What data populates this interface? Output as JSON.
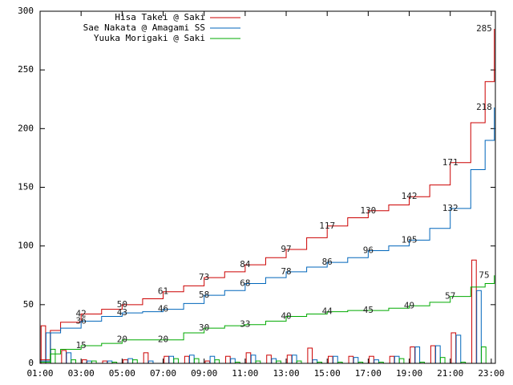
{
  "chart_data": {
    "type": "line",
    "x": [
      1,
      1.5,
      2,
      3,
      4,
      5,
      6,
      7,
      8,
      9,
      10,
      11,
      12,
      13,
      14,
      15,
      16,
      17,
      18,
      19,
      20,
      21,
      22,
      22.7,
      23.15
    ],
    "xlim": [
      1,
      23.2
    ],
    "xticks": [
      {
        "value": 1,
        "label": "01:00"
      },
      {
        "value": 3,
        "label": "03:00"
      },
      {
        "value": 5,
        "label": "05:00"
      },
      {
        "value": 7,
        "label": "07:00"
      },
      {
        "value": 9,
        "label": "09:00"
      },
      {
        "value": 11,
        "label": "11:00"
      },
      {
        "value": 13,
        "label": "13:00"
      },
      {
        "value": 15,
        "label": "15:00"
      },
      {
        "value": 17,
        "label": "17:00"
      },
      {
        "value": 19,
        "label": "19:00"
      },
      {
        "value": 21,
        "label": "21:00"
      },
      {
        "value": 23,
        "label": "23:00"
      }
    ],
    "ylim": [
      0,
      300
    ],
    "yticks": [
      0,
      50,
      100,
      150,
      200,
      250,
      300
    ],
    "grid": false,
    "legend": "top-left",
    "bar_x": [
      1,
      2,
      3,
      4,
      5,
      6,
      7,
      8,
      9,
      10,
      11,
      12,
      13,
      14,
      15,
      16,
      17,
      18,
      19,
      20,
      21,
      22
    ],
    "series": [
      {
        "name": "Hisa Takei @ Saki",
        "color": "#cc0000",
        "values": [
          3,
          28,
          35,
          42,
          46,
          50,
          55,
          61,
          66,
          73,
          78,
          84,
          90,
          97,
          107,
          117,
          124,
          130,
          135,
          142,
          152,
          171,
          205,
          240,
          285
        ],
        "value_labels": [
          null,
          null,
          null,
          "42",
          null,
          "50",
          null,
          "61",
          null,
          "73",
          null,
          "84",
          null,
          "97",
          null,
          "117",
          null,
          "130",
          null,
          "142",
          null,
          "171",
          null,
          null,
          "285"
        ],
        "bar_values": [
          32,
          11,
          3,
          2,
          3,
          9,
          6,
          6,
          2,
          6,
          9,
          7,
          7,
          13,
          6,
          6,
          6,
          6,
          14,
          15,
          26,
          88
        ]
      },
      {
        "name": "Sae Nakata @ Amagami SS",
        "color": "#0066bb",
        "values": [
          2,
          26,
          30,
          36,
          40,
          43,
          44,
          46,
          51,
          58,
          62,
          68,
          73,
          78,
          82,
          86,
          90,
          96,
          100,
          105,
          115,
          132,
          165,
          190,
          218
        ],
        "value_labels": [
          null,
          null,
          null,
          "36",
          null,
          "43",
          null,
          "46",
          null,
          "58",
          null,
          "68",
          null,
          "78",
          null,
          "86",
          null,
          "96",
          null,
          "105",
          null,
          "132",
          null,
          null,
          "218"
        ],
        "bar_values": [
          26,
          9,
          2,
          2,
          4,
          2,
          6,
          7,
          6,
          4,
          7,
          4,
          7,
          3,
          6,
          5,
          3,
          6,
          14,
          15,
          24,
          62
        ]
      },
      {
        "name": "Yuuka Morigaki @ Saki",
        "color": "#00aa00",
        "values": [
          1,
          8,
          12,
          15,
          17,
          20,
          20,
          20,
          26,
          30,
          32,
          33,
          36,
          40,
          42,
          44,
          45,
          45,
          47,
          49,
          52,
          57,
          65,
          68,
          75
        ],
        "value_labels": [
          null,
          null,
          null,
          "15",
          null,
          "20",
          null,
          "20",
          null,
          "30",
          null,
          "33",
          null,
          "40",
          null,
          "44",
          null,
          "45",
          null,
          "49",
          null,
          "57",
          null,
          null,
          "75"
        ],
        "bar_values": [
          12,
          3,
          2,
          1,
          3,
          0,
          4,
          4,
          3,
          1,
          2,
          2,
          2,
          1,
          1,
          1,
          1,
          4,
          1,
          5,
          1,
          14
        ]
      }
    ]
  }
}
